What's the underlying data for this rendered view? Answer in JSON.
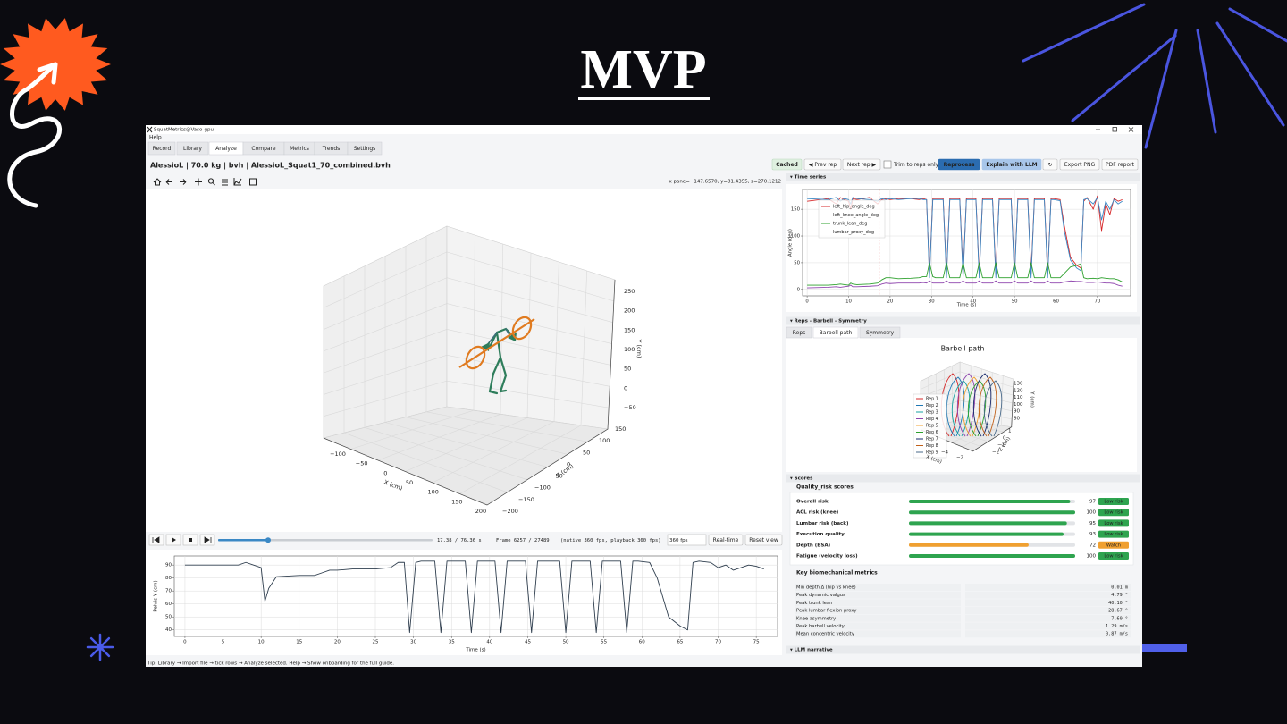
{
  "slide": {
    "title": "MVP"
  },
  "window": {
    "title": "SquatMetrics@Vaso-gpu",
    "menu": [
      "Help"
    ],
    "tabs": [
      "Record",
      "Library",
      "Analyze",
      "Compare",
      "Metrics",
      "Trends",
      "Settings"
    ],
    "active_tab": "Analyze"
  },
  "analyze": {
    "file_label": "AlessioL | 70.0 kg | bvh | AlessioL_Squat1_70_combined.bvh",
    "buttons": [
      {
        "label": "Cached",
        "style": "badge"
      },
      {
        "label": "◀ Prev rep",
        "style": "default"
      },
      {
        "label": "Next rep ▶",
        "style": "default"
      },
      {
        "label": "Trim to reps only",
        "style": "checkbox"
      },
      {
        "label": "Reprocess",
        "style": "primary"
      },
      {
        "label": "Explain with LLM",
        "style": "disabled"
      },
      {
        "label": "↻",
        "style": "default"
      },
      {
        "label": "Export PNG",
        "style": "default"
      },
      {
        "label": "PDF report",
        "style": "default"
      }
    ],
    "coords": "x pane=−147.6570, y=81.4355, z=270.1212",
    "plot3d": {
      "x_label": "X (cm)",
      "y_label": "Y (cm)",
      "z_label": "Z (cm)",
      "x_ticks": [
        "−100",
        "−50",
        "0",
        "50",
        "100",
        "150",
        "200"
      ],
      "y_ticks": [
        "250",
        "200",
        "150",
        "100",
        "50",
        "0",
        "−50"
      ],
      "z_ticks": [
        "150",
        "100",
        "50",
        "0",
        "−50",
        "−100",
        "−150",
        "−200"
      ]
    },
    "playback": {
      "time": "17.38 /  76.36 s",
      "frame": "Frame 6257 / 27489",
      "rate": "(native 360 fps, playback 360 fps)",
      "fps": "360 fps",
      "buttons": [
        "Real-time",
        "Reset view"
      ]
    },
    "tip": "Tip: Library → Import file → tick rows → Analyze selected. Help → Show onboarding for the full guide."
  },
  "side": {
    "sections": [
      "▾ Time series",
      "▾ Reps - Barbell - Symmetry",
      "▾ Scores",
      "▾ LLM narrative"
    ],
    "subtabs": [
      "Reps",
      "Barbell path",
      "Symmetry"
    ],
    "active_subtab": "Barbell path",
    "barbell": {
      "title": "Barbell path",
      "x_label": "X (cm)",
      "y_label": "Y (cm)",
      "z_label": "Z (cm)",
      "x_ticks": [
        "−4",
        "−2"
      ],
      "y_ticks": [
        "130",
        "120",
        "110",
        "100",
        "90",
        "80"
      ],
      "z_ticks": [
        "1",
        "0",
        "−1",
        "−2"
      ],
      "legend": [
        {
          "name": "Rep 1",
          "color": "#d62728"
        },
        {
          "name": "Rep 2",
          "color": "#1f77b4"
        },
        {
          "name": "Rep 3",
          "color": "#17a2a2"
        },
        {
          "name": "Rep 4",
          "color": "#8e44ad"
        },
        {
          "name": "Rep 5",
          "color": "#f0a030"
        },
        {
          "name": "Rep 6",
          "color": "#2ca02c"
        },
        {
          "name": "Rep 7",
          "color": "#1a2a6c"
        },
        {
          "name": "Rep 8",
          "color": "#c0601a"
        },
        {
          "name": "Rep 9",
          "color": "#4a6a8a"
        }
      ]
    },
    "scores": {
      "title": "Quality_risk scores",
      "xlim": [
        0,
        100
      ],
      "rows": [
        {
          "label": "Overall risk",
          "value": 97,
          "status": "Low risk",
          "color": "#2ea44f"
        },
        {
          "label": "ACL risk (knee)",
          "value": 100,
          "status": "Low risk",
          "color": "#2ea44f"
        },
        {
          "label": "Lumbar risk (back)",
          "value": 95,
          "status": "Low risk",
          "color": "#2ea44f"
        },
        {
          "label": "Execution quality",
          "value": 93,
          "status": "Low risk",
          "color": "#2ea44f"
        },
        {
          "label": "Depth (BSA)",
          "value": 72,
          "status": "Watch",
          "color": "#f0a030"
        },
        {
          "label": "Fatigue (velocity loss)",
          "value": 100,
          "status": "Low risk",
          "color": "#2ea44f"
        }
      ]
    },
    "metrics": {
      "title": "Key biomechanical metrics",
      "rows": [
        [
          "Min depth Δ (hip vs knee)",
          "0.01 m"
        ],
        [
          "Peak dynamic valgus",
          "4.79 °"
        ],
        [
          "Peak trunk lean",
          "40.10 °"
        ],
        [
          "Peak lumbar flexion proxy",
          "28.67 °"
        ],
        [
          "Knee asymmetry",
          "7.60 °"
        ],
        [
          "Peak barbell velocity",
          "1.29 m/s"
        ],
        [
          "Mean concentric velocity",
          "0.87 m/s"
        ]
      ]
    }
  },
  "chart_data": [
    {
      "type": "line",
      "xlabel": "Time (s)",
      "ylabel": "Angle (deg)",
      "xlim": [
        -1.1,
        78
      ],
      "ylim": [
        -12,
        187
      ],
      "xticks": [
        0,
        10,
        20,
        30,
        40,
        50,
        60,
        70
      ],
      "yticks": [
        0,
        50,
        100,
        150
      ],
      "grid": true,
      "legend": "upper left",
      "cursor": 17.38,
      "x": [
        0,
        5,
        7,
        8,
        9,
        10,
        10.5,
        11,
        12,
        15,
        17,
        18,
        19,
        20,
        22,
        25,
        27,
        28,
        28.8,
        29.5,
        30.3,
        31,
        32.8,
        33.6,
        34.4,
        35,
        36.8,
        37.6,
        38.4,
        39,
        40.7,
        41.5,
        42.3,
        43,
        44.7,
        45.5,
        46.3,
        47,
        49.2,
        50,
        50.8,
        51.5,
        53.2,
        54,
        54.8,
        55.5,
        57.2,
        58,
        58.8,
        59.5,
        61,
        62,
        63.5,
        65,
        66,
        66.7,
        67.5,
        69,
        70,
        71,
        72,
        73,
        74,
        75,
        76
      ],
      "series": [
        {
          "name": "left_hip_angle_deg",
          "color": "#d62728",
          "values": [
            165,
            170,
            160,
            172,
            168,
            165,
            150,
            170,
            168,
            172,
            160,
            168,
            170,
            168,
            170,
            170,
            168,
            170,
            168,
            28,
            170,
            170,
            170,
            28,
            170,
            170,
            170,
            28,
            170,
            170,
            170,
            28,
            170,
            170,
            170,
            28,
            170,
            170,
            170,
            28,
            170,
            170,
            170,
            28,
            170,
            170,
            170,
            28,
            170,
            170,
            168,
            120,
            60,
            45,
            40,
            165,
            172,
            150,
            175,
            110,
            160,
            140,
            170,
            165,
            168
          ]
        },
        {
          "name": "left_knee_angle_deg",
          "color": "#3a88c5",
          "values": [
            170,
            168,
            172,
            165,
            170,
            168,
            160,
            172,
            170,
            168,
            165,
            170,
            168,
            170,
            168,
            170,
            170,
            168,
            168,
            22,
            168,
            168,
            168,
            22,
            168,
            168,
            168,
            22,
            168,
            168,
            168,
            22,
            168,
            168,
            168,
            22,
            168,
            168,
            168,
            22,
            168,
            168,
            168,
            22,
            168,
            168,
            168,
            22,
            168,
            168,
            166,
            110,
            55,
            40,
            35,
            168,
            170,
            160,
            172,
            130,
            165,
            150,
            168,
            160,
            165
          ]
        },
        {
          "name": "trunk_lean_deg",
          "color": "#2ca02c",
          "values": [
            8,
            8,
            9,
            10,
            9,
            8,
            12,
            10,
            9,
            10,
            12,
            18,
            22,
            22,
            20,
            21,
            22,
            24,
            24,
            50,
            24,
            22,
            22,
            50,
            22,
            22,
            22,
            50,
            22,
            22,
            22,
            50,
            22,
            22,
            22,
            50,
            22,
            22,
            22,
            50,
            22,
            22,
            22,
            50,
            22,
            22,
            22,
            50,
            22,
            22,
            22,
            30,
            42,
            45,
            48,
            22,
            20,
            21,
            20,
            22,
            21,
            20,
            20,
            18,
            14
          ]
        },
        {
          "name": "lumbar_proxy_deg",
          "color": "#8e44ad",
          "values": [
            3,
            4,
            5,
            4,
            5,
            6,
            8,
            5,
            5,
            6,
            7,
            10,
            12,
            11,
            12,
            12,
            12,
            13,
            12,
            16,
            12,
            12,
            12,
            16,
            12,
            12,
            12,
            16,
            12,
            12,
            12,
            16,
            12,
            12,
            12,
            16,
            12,
            12,
            12,
            16,
            12,
            12,
            12,
            16,
            12,
            12,
            12,
            16,
            12,
            12,
            12,
            14,
            16,
            15,
            15,
            14,
            13,
            13,
            14,
            13,
            12,
            12,
            11,
            8,
            6
          ]
        }
      ]
    },
    {
      "type": "line",
      "xlabel": "Time (s)",
      "ylabel": "Pelvis Y (cm)",
      "xlim": [
        -1.4,
        77.8
      ],
      "ylim": [
        35,
        97
      ],
      "xticks": [
        0,
        5,
        10,
        15,
        20,
        25,
        30,
        35,
        40,
        45,
        50,
        55,
        60,
        65,
        70,
        75
      ],
      "yticks": [
        40,
        50,
        60,
        70,
        80,
        90
      ],
      "grid": true,
      "color": "#2f3e4e",
      "x": [
        0,
        5,
        7,
        8,
        9,
        10,
        10.5,
        11,
        12,
        15,
        17,
        18,
        19,
        20,
        22,
        25,
        27,
        28,
        28.8,
        29.5,
        30.3,
        31,
        32.8,
        33.6,
        34.4,
        35,
        36.8,
        37.6,
        38.4,
        39,
        40.7,
        41.5,
        42.3,
        43,
        44.7,
        45.5,
        46.3,
        47,
        49.2,
        50,
        50.8,
        51.5,
        53.2,
        54,
        54.8,
        55.5,
        57.2,
        58,
        58.8,
        59.5,
        61,
        62,
        63.5,
        65,
        66,
        66.7,
        67.5,
        69,
        70,
        71,
        72,
        73,
        74,
        75,
        76
      ],
      "values": [
        90,
        90,
        90,
        92,
        90,
        88,
        62,
        72,
        81,
        82,
        82,
        84,
        86,
        86,
        87,
        87,
        88,
        92,
        92,
        38,
        92,
        93,
        93,
        38,
        93,
        93,
        93,
        38,
        93,
        93,
        93,
        38,
        93,
        93,
        93,
        38,
        93,
        93,
        93,
        38,
        93,
        93,
        93,
        38,
        93,
        93,
        93,
        38,
        93,
        93,
        92,
        80,
        50,
        43,
        40,
        92,
        93,
        92,
        88,
        90,
        86,
        88,
        90,
        89,
        87
      ]
    }
  ]
}
